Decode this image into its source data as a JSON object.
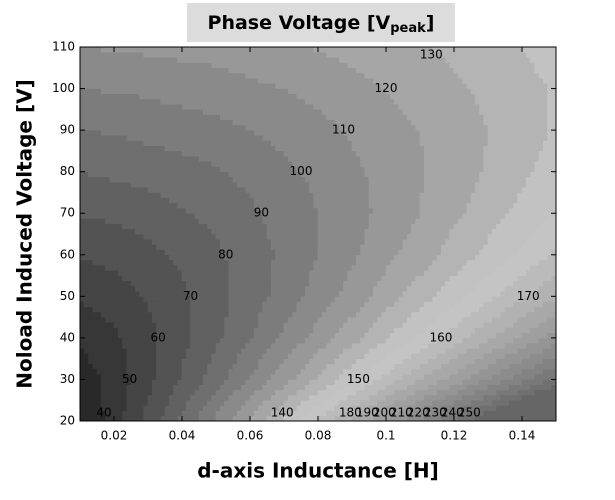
{
  "chart_data": {
    "type": "contour",
    "title": [
      "Phase Voltage [V",
      "peak",
      "]"
    ],
    "xlabel": "d-axis Inductance [H]",
    "ylabel": "Noload Induced Voltage [V]",
    "x": [
      0.01,
      0.02,
      0.03,
      0.04,
      0.05,
      0.06,
      0.07,
      0.08,
      0.09,
      0.1,
      0.11,
      0.12,
      0.13,
      0.14,
      0.15
    ],
    "y": [
      20,
      30,
      40,
      50,
      60,
      70,
      80,
      90,
      100,
      110
    ],
    "z": [
      [
        28,
        45,
        63,
        82,
        102,
        122,
        141,
        161,
        181,
        201,
        221,
        241,
        261,
        281,
        301
      ],
      [
        34,
        44,
        57,
        71,
        85,
        101,
        116,
        131,
        147,
        163,
        179,
        194,
        210,
        226,
        242
      ],
      [
        42,
        48,
        57,
        67,
        78,
        89,
        102,
        114,
        126,
        139,
        152,
        165,
        178,
        191,
        204
      ],
      [
        51,
        55,
        61,
        68,
        76,
        85,
        94,
        104,
        114,
        125,
        135,
        146,
        157,
        168,
        179
      ],
      [
        61,
        63,
        67,
        72,
        78,
        85,
        92,
        100,
        108,
        117,
        125,
        134,
        143,
        152,
        162
      ],
      [
        71,
        72,
        75,
        79,
        83,
        88,
        94,
        100,
        106,
        113,
        120,
        128,
        135,
        143,
        151
      ],
      [
        80,
        82,
        84,
        86,
        89,
        93,
        98,
        102,
        108,
        113,
        119,
        125,
        131,
        138,
        144
      ],
      [
        90,
        91,
        93,
        95,
        97,
        100,
        103,
        107,
        111,
        116,
        120,
        125,
        130,
        136,
        141
      ],
      [
        100,
        101,
        102,
        104,
        105,
        108,
        110,
        113,
        117,
        120,
        124,
        128,
        132,
        137,
        141
      ],
      [
        110,
        111,
        112,
        113,
        114,
        116,
        118,
        121,
        123,
        126,
        129,
        132,
        136,
        140,
        144
      ]
    ],
    "levels": [
      40,
      50,
      60,
      70,
      80,
      90,
      100,
      110,
      120,
      130,
      140,
      150,
      160,
      170,
      180,
      190,
      200,
      210,
      220,
      230,
      240,
      250
    ],
    "colormap": [
      [
        20,
        "#141414"
      ],
      [
        150,
        "#c9c9c9"
      ],
      [
        300,
        "#3c3c3c"
      ]
    ],
    "xlim": [
      0.01,
      0.15
    ],
    "xticks": [
      0.02,
      0.04,
      0.06,
      0.08,
      0.1,
      0.12,
      0.14
    ],
    "ylim": [
      20,
      110
    ],
    "yticks": [
      20,
      30,
      40,
      50,
      60,
      70,
      80,
      90,
      100,
      110
    ]
  }
}
